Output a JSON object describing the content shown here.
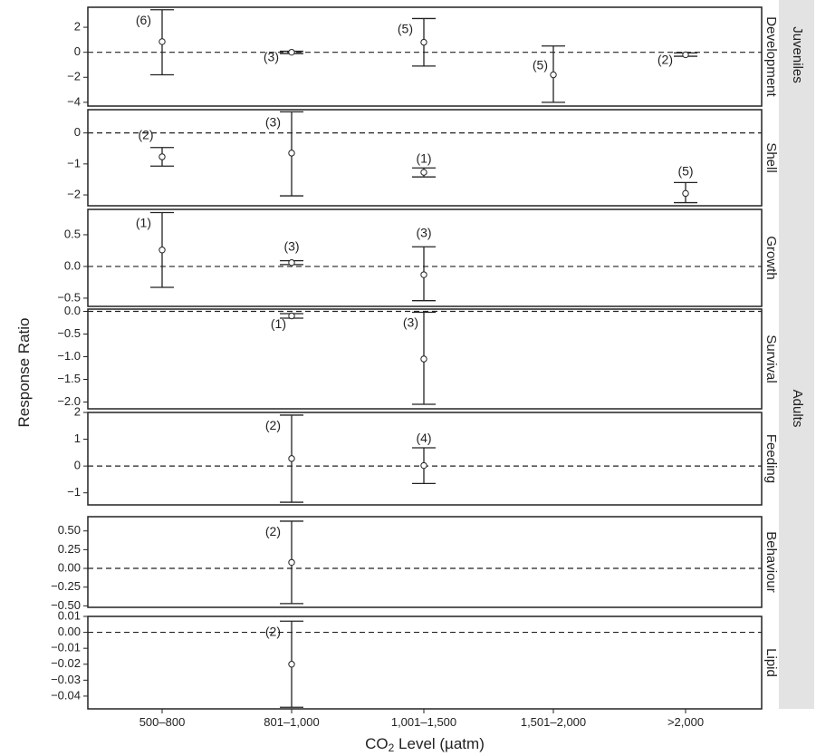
{
  "chart_data": {
    "type": "errorbar",
    "xlabel": "CO₂ Level (µatm)",
    "ylabel": "Response Ratio",
    "x_ticks": [
      "500–800",
      "801–1,000",
      "1,001–1,500",
      "1,501–2,000",
      ">2,000"
    ],
    "reference_line": 0,
    "group_strips": [
      {
        "label": "Juveniles",
        "panels": [
          "Development"
        ]
      },
      {
        "label": "Adults",
        "panels": [
          "Shell",
          "Growth",
          "Survival",
          "Feeding",
          "Behaviour",
          "Lipid"
        ]
      }
    ],
    "panels": [
      {
        "label": "Development",
        "ylim": [
          -4.3,
          3.6
        ],
        "yticks": [
          2,
          0,
          -2,
          -4
        ],
        "ytick_labels": [
          "2",
          "0",
          "−2",
          "−4"
        ],
        "points": [
          {
            "x": "500–800",
            "y": 0.85,
            "lo": -1.8,
            "hi": 3.4,
            "n": "(6)"
          },
          {
            "x": "801–1,000",
            "y": 0.0,
            "lo": -0.1,
            "hi": 0.08,
            "n": "(3)"
          },
          {
            "x": "1,001–1,500",
            "y": 0.8,
            "lo": -1.1,
            "hi": 2.7,
            "n": "(5)"
          },
          {
            "x": "1,501–2,000",
            "y": -1.8,
            "lo": -4.0,
            "hi": 0.5,
            "n": "(5)"
          },
          {
            "x": ">2,000",
            "y": -0.2,
            "lo": -0.32,
            "hi": -0.05,
            "n": "(2)"
          }
        ]
      },
      {
        "label": "Shell",
        "ylim": [
          -2.35,
          0.75
        ],
        "yticks": [
          0,
          -1,
          -2
        ],
        "ytick_labels": [
          "0",
          "−1",
          "−2"
        ],
        "points": [
          {
            "x": "500–800",
            "y": -0.77,
            "lo": -1.07,
            "hi": -0.47,
            "n": "(2)"
          },
          {
            "x": "801–1,000",
            "y": -0.65,
            "lo": -2.03,
            "hi": 0.68,
            "n": "(3)"
          },
          {
            "x": "1,001–1,500",
            "y": -1.27,
            "lo": -1.42,
            "hi": -1.13,
            "n": "(1)"
          },
          {
            "x": ">2,000",
            "y": -1.95,
            "lo": -2.25,
            "hi": -1.6,
            "n": "(5)"
          }
        ]
      },
      {
        "label": "Growth",
        "ylim": [
          -0.63,
          0.9
        ],
        "yticks": [
          0.5,
          0.0,
          -0.5
        ],
        "ytick_labels": [
          "0.5",
          "0.0",
          "−0.5"
        ],
        "points": [
          {
            "x": "500–800",
            "y": 0.26,
            "lo": -0.33,
            "hi": 0.85,
            "n": "(1)"
          },
          {
            "x": "801–1,000",
            "y": 0.06,
            "lo": 0.03,
            "hi": 0.09,
            "n": "(3)"
          },
          {
            "x": "1,001–1,500",
            "y": -0.13,
            "lo": -0.54,
            "hi": 0.31,
            "n": "(3)"
          }
        ]
      },
      {
        "label": "Survival",
        "ylim": [
          -2.15,
          0.05
        ],
        "yticks": [
          0.0,
          -0.5,
          -1.0,
          -1.5,
          -2.0
        ],
        "ytick_labels": [
          "0.0",
          "−0.5",
          "−1.0",
          "−1.5",
          "−2.0"
        ],
        "points": [
          {
            "x": "801–1,000",
            "y": -0.1,
            "lo": -0.15,
            "hi": -0.05,
            "n": "(1)"
          },
          {
            "x": "1,001–1,500",
            "y": -1.05,
            "lo": -2.05,
            "hi": -0.02,
            "n": "(3)"
          }
        ]
      },
      {
        "label": "Feeding",
        "ylim": [
          -1.45,
          2.0
        ],
        "yticks": [
          2,
          1,
          0,
          -1
        ],
        "ytick_labels": [
          "2",
          "1",
          "0",
          "−1"
        ],
        "points": [
          {
            "x": "801–1,000",
            "y": 0.28,
            "lo": -1.35,
            "hi": 1.9,
            "n": "(2)"
          },
          {
            "x": "1,001–1,500",
            "y": 0.02,
            "lo": -0.65,
            "hi": 0.68,
            "n": "(4)"
          }
        ]
      },
      {
        "label": "Behaviour",
        "ylim": [
          -0.52,
          0.69
        ],
        "yticks": [
          0.5,
          0.25,
          0.0,
          -0.25,
          -0.5
        ],
        "ytick_labels": [
          "0.50",
          "0.25",
          "0.00",
          "−0.25",
          "−0.50"
        ],
        "points": [
          {
            "x": "801–1,000",
            "y": 0.08,
            "lo": -0.47,
            "hi": 0.63,
            "n": "(2)"
          }
        ]
      },
      {
        "label": "Lipid",
        "ylim": [
          -0.048,
          0.01
        ],
        "yticks": [
          0.01,
          0.0,
          -0.01,
          -0.02,
          -0.03,
          -0.04
        ],
        "ytick_labels": [
          "0.01",
          "0.00",
          "−0.01",
          "−0.02",
          "−0.03",
          "−0.04"
        ],
        "points": [
          {
            "x": "801–1,000",
            "y": -0.02,
            "lo": -0.047,
            "hi": 0.007,
            "n": "(2)"
          }
        ]
      }
    ]
  },
  "colors": {
    "axis": "#222222",
    "strip_bg": "#e3e3e3",
    "background": "#ffffff"
  }
}
